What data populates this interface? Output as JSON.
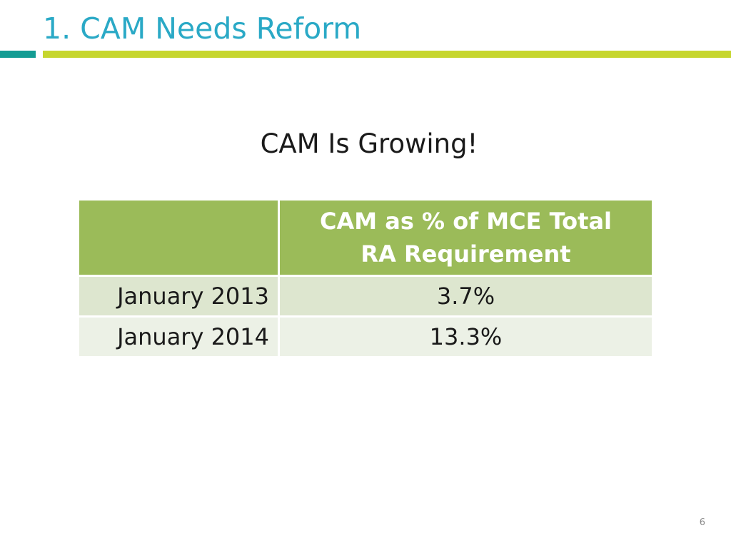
{
  "slide": {
    "title": "1. CAM Needs Reform",
    "subtitle": "CAM Is Growing!",
    "page_number": "6"
  },
  "table": {
    "header": {
      "blank": "",
      "value_col_line1": "CAM as % of MCE Total",
      "value_col_line2": "RA Requirement"
    },
    "rows": [
      {
        "label": "January 2013",
        "value": "3.7%"
      },
      {
        "label": "January 2014",
        "value": "13.3%"
      }
    ]
  },
  "colors": {
    "title": "#2aa9c6",
    "rule_teal": "#139c93",
    "rule_green": "#c6d62e",
    "table_header": "#9bbb59",
    "row_odd": "#dde6cf",
    "row_even": "#ecf1e6"
  }
}
